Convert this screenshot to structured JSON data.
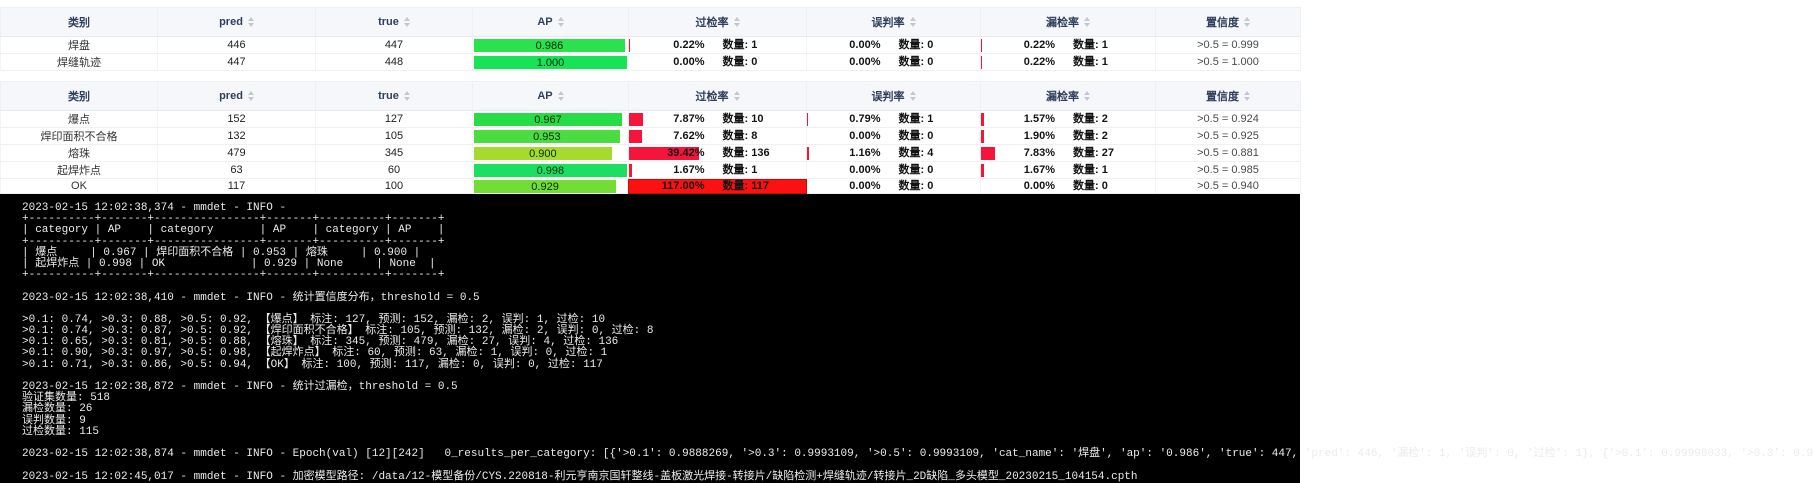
{
  "colors": {
    "rate_bar": "#f5153a",
    "rate_bar_full": "#fb1111",
    "header_bg": "#f5f7fa",
    "terminal_bg": "#000000",
    "terminal_fg": "#ebebeb"
  },
  "count_label": "数量:",
  "columns": [
    {
      "key": "category",
      "label": "类别",
      "sortable": false
    },
    {
      "key": "pred",
      "label": "pred",
      "sortable": true
    },
    {
      "key": "true",
      "label": "true",
      "sortable": true
    },
    {
      "key": "ap",
      "label": "AP",
      "sortable": true
    },
    {
      "key": "overdetect",
      "label": "过检率",
      "sortable": true
    },
    {
      "key": "misjudge",
      "label": "误判率",
      "sortable": true
    },
    {
      "key": "missdetect",
      "label": "漏检率",
      "sortable": true
    },
    {
      "key": "confidence",
      "label": "置信度",
      "sortable": true
    }
  ],
  "tables": [
    {
      "rows": [
        {
          "category": "焊盘",
          "pred": "446",
          "true": "447",
          "ap": "0.986",
          "ap_pct": 98.6,
          "ap_color": "#2ae24e",
          "over": {
            "pct": "0.22%",
            "w": 0.22,
            "n": "1"
          },
          "mis": {
            "pct": "0.00%",
            "w": 0,
            "n": "0"
          },
          "miss": {
            "pct": "0.22%",
            "w": 0.22,
            "n": "1"
          },
          "conf": ">0.5 = 0.999"
        },
        {
          "category": "焊缝轨迹",
          "pred": "447",
          "true": "448",
          "ap": "1.000",
          "ap_pct": 100,
          "ap_color": "#17e357",
          "over": {
            "pct": "0.00%",
            "w": 0,
            "n": "0"
          },
          "mis": {
            "pct": "0.00%",
            "w": 0,
            "n": "0"
          },
          "miss": {
            "pct": "0.22%",
            "w": 0.22,
            "n": "1"
          },
          "conf": ">0.5 = 1.000"
        }
      ]
    },
    {
      "rows": [
        {
          "category": "爆点",
          "pred": "152",
          "true": "127",
          "ap": "0.967",
          "ap_pct": 96.7,
          "ap_color": "#27dc46",
          "over": {
            "pct": "7.87%",
            "w": 7.87,
            "n": "10"
          },
          "mis": {
            "pct": "0.79%",
            "w": 0.79,
            "n": "1"
          },
          "miss": {
            "pct": "1.57%",
            "w": 1.57,
            "n": "2"
          },
          "conf": ">0.5 = 0.924"
        },
        {
          "category": "焊印面积不合格",
          "pred": "132",
          "true": "105",
          "ap": "0.953",
          "ap_pct": 95.3,
          "ap_color": "#4cdc41",
          "over": {
            "pct": "7.62%",
            "w": 7.62,
            "n": "8"
          },
          "mis": {
            "pct": "0.00%",
            "w": 0,
            "n": "0"
          },
          "miss": {
            "pct": "1.90%",
            "w": 1.9,
            "n": "2"
          },
          "conf": ">0.5 = 0.925"
        },
        {
          "category": "熔珠",
          "pred": "479",
          "true": "345",
          "ap": "0.900",
          "ap_pct": 90,
          "ap_color": "#a5db2f",
          "over": {
            "pct": "39.42%",
            "w": 39.42,
            "n": "136"
          },
          "mis": {
            "pct": "1.16%",
            "w": 1.16,
            "n": "4"
          },
          "miss": {
            "pct": "7.83%",
            "w": 7.83,
            "n": "27"
          },
          "conf": ">0.5 = 0.881"
        },
        {
          "category": "起焊炸点",
          "pred": "63",
          "true": "60",
          "ap": "0.998",
          "ap_pct": 99.8,
          "ap_color": "#1cdf62",
          "over": {
            "pct": "1.67%",
            "w": 1.67,
            "n": "1"
          },
          "mis": {
            "pct": "0.00%",
            "w": 0,
            "n": "0"
          },
          "miss": {
            "pct": "1.67%",
            "w": 1.67,
            "n": "1"
          },
          "conf": ">0.5 = 0.985"
        },
        {
          "category": "OK",
          "pred": "117",
          "true": "100",
          "ap": "0.929",
          "ap_pct": 92.9,
          "ap_color": "#73dc35",
          "over": {
            "pct": "117.00%",
            "w": 117,
            "n": "117"
          },
          "mis": {
            "pct": "0.00%",
            "w": 0,
            "n": "0"
          },
          "miss": {
            "pct": "0.00%",
            "w": 0,
            "n": "0"
          },
          "conf": ">0.5 = 0.940"
        }
      ]
    }
  ],
  "terminal": {
    "lines": [
      "2023-02-15 12:02:38,374 - mmdet - INFO - ",
      "+----------+-------+----------------+-------+----------+-------+",
      "| category | AP    | category       | AP    | category | AP    |",
      "+----------+-------+----------------+-------+----------+-------+",
      "| 爆点     | 0.967 | 焊印面积不合格 | 0.953 | 熔珠     | 0.900 |",
      "| 起焊炸点 | 0.998 | OK             | 0.929 | None     | None  |",
      "+----------+-------+----------------+-------+----------+-------+",
      "",
      "2023-02-15 12:02:38,410 - mmdet - INFO - 统计置信度分布，threshold = 0.5",
      "",
      ">0.1: 0.74, >0.3: 0.88, >0.5: 0.92, 【爆点】 标注: 127, 预测: 152, 漏检: 2, 误判: 1, 过检: 10",
      ">0.1: 0.74, >0.3: 0.87, >0.5: 0.92, 【焊印面积不合格】 标注: 105, 预测: 132, 漏检: 2, 误判: 0, 过检: 8",
      ">0.1: 0.65, >0.3: 0.81, >0.5: 0.88, 【熔珠】 标注: 345, 预测: 479, 漏检: 27, 误判: 4, 过检: 136",
      ">0.1: 0.90, >0.3: 0.97, >0.5: 0.98, 【起焊炸点】 标注: 60, 预测: 63, 漏检: 1, 误判: 0, 过检: 1",
      ">0.1: 0.71, >0.3: 0.86, >0.5: 0.94, 【OK】 标注: 100, 预测: 117, 漏检: 0, 误判: 0, 过检: 117",
      "",
      "2023-02-15 12:02:38,872 - mmdet - INFO - 统计过漏检，threshold = 0.5",
      "验证集数量: 518",
      "漏检数量: 26",
      "误判数量: 9",
      "过检数量: 115",
      "",
      "2023-02-15 12:02:38,874 - mmdet - INFO - Epoch(val) [12][242]   0_results_per_category: [{'>0.1': 0.9888269, '>0.3': 0.9993109, '>0.5': 0.9993109, 'cat_name': '焊盘', 'ap': '0.986', 'true': 447, 'pred': 446, '漏检': 1, '误判': 0, '过检': 1}, {'>0.1': 0.99998033, '>0.3': 0.9",
      "",
      "2023-02-15 12:02:45,017 - mmdet - INFO - 加密模型路径: /data/12-模型备份/CYS.220818-利元亨南京国轩整线-盖板激光焊接-转接片/缺陷检测+焊缝轨迹/转接片_2D缺陷_多头模型_20230215_104154.cpth"
    ]
  }
}
